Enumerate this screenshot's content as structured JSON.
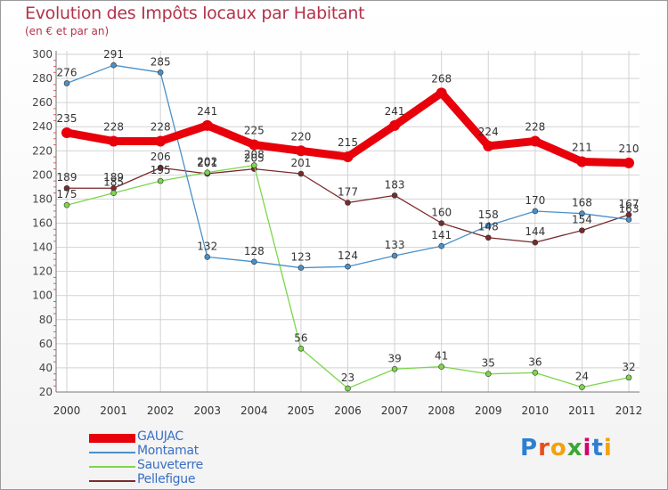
{
  "header": {
    "title": "Evolution des Impôts locaux par Habitant",
    "subtitle": "(en € et par an)"
  },
  "logo": {
    "text": "Proxiti",
    "colors": [
      "#2d7fd1",
      "#e84e1b",
      "#f2a20c",
      "#39a935",
      "#d6006e",
      "#2d7fd1",
      "#f2a20c"
    ]
  },
  "chart_data": {
    "type": "line",
    "title": "Evolution des Impôts locaux par Habitant",
    "subtitle": "(en € et par an)",
    "xlabel": "",
    "ylabel": "",
    "x": [
      "2000",
      "2001",
      "2002",
      "2003",
      "2004",
      "2005",
      "2006",
      "2007",
      "2008",
      "2009",
      "2010",
      "2011",
      "2012"
    ],
    "ylim": [
      20,
      300
    ],
    "yticks": [
      "20",
      "40",
      "60",
      "80",
      "100",
      "120",
      "140",
      "160",
      "180",
      "200",
      "220",
      "240",
      "260",
      "280",
      "300"
    ],
    "grid": true,
    "legend": "bottom-left",
    "series": [
      {
        "name": "GAUJAC",
        "color": "#e8000b",
        "values": [
          235,
          228,
          228,
          241,
          225,
          220,
          215,
          241,
          268,
          224,
          228,
          211,
          210
        ],
        "labels": [
          "235",
          "228",
          "228",
          "241",
          "225",
          "220",
          "215",
          "241",
          "268",
          "224",
          "228",
          "211",
          "210"
        ]
      },
      {
        "name": "Montamat",
        "color": "#4a90c8",
        "values": [
          276,
          291,
          285,
          132,
          128,
          123,
          124,
          133,
          141,
          158,
          170,
          168,
          163
        ],
        "labels": [
          "276",
          "291",
          "285",
          "132",
          "128",
          "123",
          "124",
          "133",
          "141",
          "158",
          "170",
          "168",
          "163"
        ]
      },
      {
        "name": "Sauveterre",
        "color": "#7cd64a",
        "values": [
          175,
          185,
          195,
          202,
          208,
          56,
          23,
          39,
          41,
          35,
          36,
          24,
          32
        ],
        "labels": [
          "175",
          "185",
          "195",
          "202",
          "208",
          "56",
          "23",
          "39",
          "41",
          "35",
          "36",
          "24",
          "32"
        ]
      },
      {
        "name": "Pellefigue",
        "color": "#7a2a2a",
        "values": [
          189,
          189,
          206,
          201,
          205,
          201,
          177,
          183,
          160,
          148,
          144,
          154,
          167
        ],
        "labels": [
          "189",
          "189",
          "206",
          "201",
          "205",
          "201",
          "177",
          "183",
          "160",
          "148",
          "144",
          "154",
          "167"
        ]
      }
    ]
  }
}
